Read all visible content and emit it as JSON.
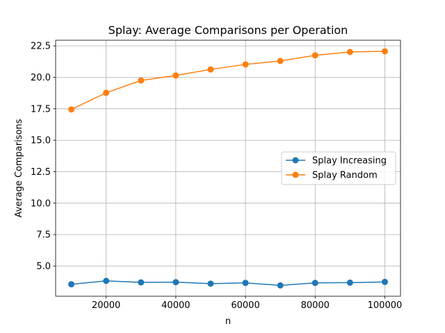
{
  "chart_data": {
    "type": "line",
    "title": "Splay: Average Comparisons per Operation",
    "xlabel": "n",
    "ylabel": "Average Comparisons",
    "x": [
      10000,
      20000,
      30000,
      40000,
      50000,
      60000,
      70000,
      80000,
      90000,
      100000
    ],
    "xlim": [
      5500,
      104500
    ],
    "ylim": [
      2.6,
      22.95
    ],
    "xticks": [
      20000,
      40000,
      60000,
      80000,
      100000
    ],
    "xtick_labels": [
      "20000",
      "40000",
      "60000",
      "80000",
      "100000"
    ],
    "yticks": [
      5.0,
      7.5,
      10.0,
      12.5,
      15.0,
      17.5,
      20.0,
      22.5
    ],
    "ytick_labels": [
      "5.0",
      "7.5",
      "10.0",
      "12.5",
      "15.0",
      "17.5",
      "20.0",
      "22.5"
    ],
    "grid": true,
    "legend_position": "center-right",
    "series": [
      {
        "name": "Splay Increasing",
        "color": "#1f77b4",
        "marker": "circle",
        "values": [
          3.55,
          3.82,
          3.7,
          3.72,
          3.6,
          3.66,
          3.46,
          3.66,
          3.68,
          3.74
        ]
      },
      {
        "name": "Splay Random",
        "color": "#ff7f0e",
        "marker": "circle",
        "values": [
          17.45,
          18.77,
          19.75,
          20.15,
          20.63,
          21.03,
          21.3,
          21.75,
          22.02,
          22.07
        ]
      }
    ]
  }
}
